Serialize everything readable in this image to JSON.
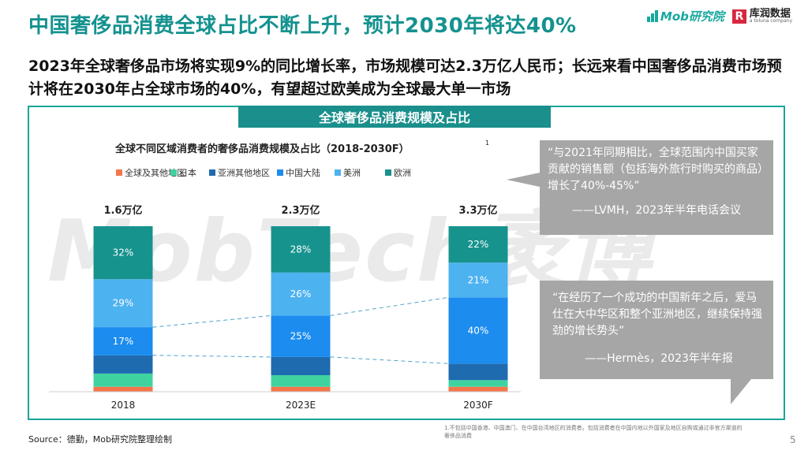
{
  "title": "中国奢侈品消费全球占比不断上升，预计2030年将达40%",
  "subtitle": "2023年全球奢侈品市场将实现9%的同比增长率，市场规模可达2.3万亿人民币；长远来看中国奢侈品消费市场预计将在2030年占全球市场的40%，有望超过欧美成为全球最大单一市场",
  "logos": {
    "mob": "Mob研究院",
    "kx": "库润数据",
    "kx_sub": "a toluna company",
    "kx_mark": "R"
  },
  "banner": "全球奢侈品消费规模及占比",
  "watermark": "MobTech袤博",
  "chart_data": {
    "type": "bar",
    "stacked": true,
    "title": "全球不同区域消费者的奢侈品消费规模及占比（2018-2030F）",
    "title_superscript": "1",
    "categories": [
      "2018",
      "2023E",
      "2030F"
    ],
    "totals": [
      "1.6万亿",
      "2.3万亿",
      "3.3万亿"
    ],
    "series": [
      {
        "name": "全球及其他地区",
        "color": "#f4764a",
        "values": [
          3,
          3,
          3
        ]
      },
      {
        "name": "日本",
        "color": "#3fd49f",
        "values": [
          8,
          7,
          4
        ]
      },
      {
        "name": "亚洲其他地区",
        "color": "#1f6bb0",
        "values": [
          11,
          11,
          10
        ]
      },
      {
        "name": "中国大陆",
        "color": "#1c8cef",
        "values": [
          17,
          25,
          40
        ]
      },
      {
        "name": "美洲",
        "color": "#4db2f0",
        "values": [
          29,
          26,
          21
        ]
      },
      {
        "name": "欧洲",
        "color": "#17938e",
        "values": [
          32,
          28,
          22
        ]
      }
    ],
    "data_labels": {
      "中国大陆": [
        "17%",
        "25%",
        "40%"
      ],
      "美洲": [
        "29%",
        "26%",
        "21%"
      ],
      "欧洲": [
        "32%",
        "28%",
        "22%"
      ]
    },
    "legend": "top",
    "ylim": [
      0,
      100
    ],
    "grid": false,
    "connectors": "dashed lines linking 中国大陆 segment across bars"
  },
  "quotes": [
    {
      "text": "“与2021年同期相比，全球范围内中国买家贡献的销售额（包括海外旅行时购买的商品）增长了40%-45%”",
      "source": "——LVMH，2023年半年电话会议"
    },
    {
      "text": "“在经历了一个成功的中国新年之后，爱马仕在大中华区和整个亚洲地区，继续保持强劲的增长势头”",
      "source": "——Hermès，2023年半年报"
    }
  ],
  "source": "Source：德勤，Mob研究院整理绘制",
  "footnote": "1.不包括中国香港、中国澳门、在中国台湾地区的消费者。包括消费者在中国内地以外国家及地区自购或通过非官方渠道的奢侈品消费",
  "page_number": "5"
}
